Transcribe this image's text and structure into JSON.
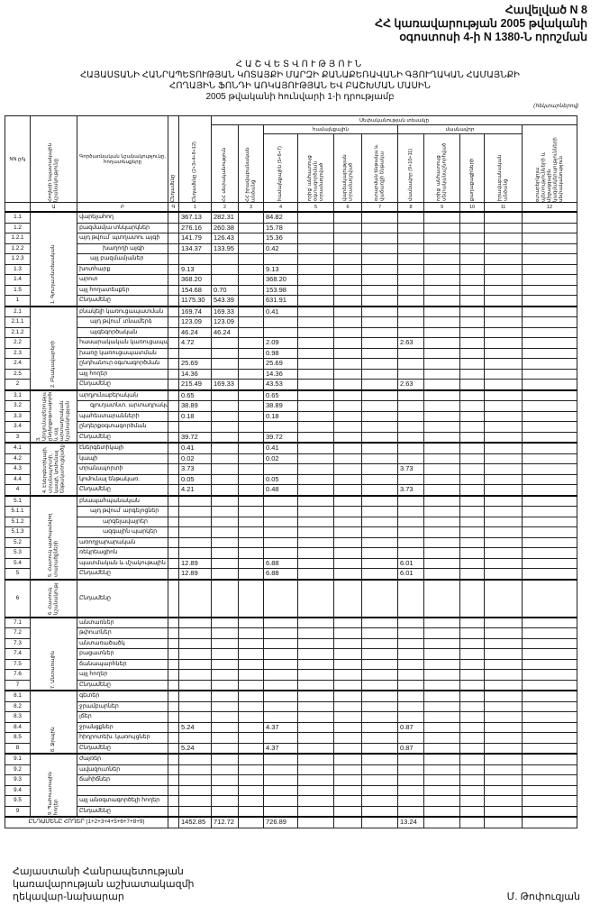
{
  "annex": {
    "line1": "Հավելված N 8",
    "line2": "ՀՀ կառավարության 2005 թվականի",
    "line3": "օգոստոսի 4-ի N 1380-Ն որոշման"
  },
  "title": {
    "t1": "ՀԱՇՎԵՏՎՈՒԹՅՈՒՆ",
    "t2": "ՀԱՅԱՍՏԱՆԻ ՀԱՆՐԱՊԵՏՈՒԹՅԱՆ ԿՈՏԱՅՔԻ ՄԱՐԶԻ ՔԱՆԱՔԵՌԱՎԱՆԻ ԳՅՈՒՂԱԿԱՆ ՀԱՄԱՅՆՔԻ",
    "t3": "ՀՈՂԱՅԻՆ ՖՈՆԴԻ ԱՌԿԱՅՈՒԹՅԱՆ ԵՎ ԲԱՇԽՄԱՆ ՄԱՍԻՆ",
    "t4": "2005 թվականի հունվարի 1-ի դրությամբ",
    "unit": "(հեկտարներով)"
  },
  "header": {
    "no": "NN ը/կ",
    "group": "Հողերի նպատակային նշանակությունը",
    "name": "Գործառնական նշանակությունը, հողատեսքերը",
    "measure": "Ընդամենը",
    "total": "Ընդամենը (2+3+4+8+12)",
    "ownership": "Սեփականության տեսակը",
    "communal": "համայնքային",
    "private": "մասնավոր",
    "c2": "ՀՀ սեփականություն",
    "c3": "ՀՀ իրավաբանական անձանց",
    "c4": "համայնքային (5+6+7)",
    "c5": "որից՝ անհատույց օգտագործման տրամադրված",
    "c6": "վարձակալության տրամադրված",
    "c7": "օտարման ենթակա և վաճառքի ենթակա",
    "c8": "մասնավոր (9+10+11)",
    "c9": "որից՝ անհատույց սեփականաշնորհված",
    "c10": "քաղաքացիների",
    "c11": "իրավաբանական անձանց",
    "c12": "օտարերկրյա պետությունների և միջազգային կազմակերպությունների սեփականություն",
    "nums": [
      "",
      "Ա",
      "Բ",
      "Գ",
      "1",
      "2",
      "3",
      "4",
      "5",
      "6",
      "7",
      "8",
      "9",
      "10",
      "11",
      "12"
    ]
  },
  "table": {
    "sections": [
      {
        "group": "1. Գյուղատնտեսական",
        "rows": [
          {
            "no": "1.1",
            "name": "վարելահող",
            "v": {
              "1": "367.13",
              "2": "282.31",
              "4": "84.82"
            }
          },
          {
            "no": "1.2",
            "name": "բազմամյա տնկարկներ",
            "v": {
              "1": "276.16",
              "2": "260.38",
              "4": "15.78"
            }
          },
          {
            "no": "1.2.1",
            "name": "այդ թվում՝ պտղատու այգի",
            "v": {
              "1": "141.79",
              "2": "126.43",
              "4": "15.36"
            }
          },
          {
            "no": "1.2.2",
            "name": "խաղողի այգի",
            "ind": 2,
            "v": {
              "1": "134.37",
              "2": "133.95",
              "4": "0.42"
            }
          },
          {
            "no": "1.2.3",
            "name": "այլ բազմամյաներ",
            "ind": 1,
            "v": {}
          },
          {
            "no": "1.3",
            "name": "խոտհարք",
            "v": {
              "1": "9.13",
              "4": "9.13"
            }
          },
          {
            "no": "1.4",
            "name": "արոտ",
            "v": {
              "1": "368.20",
              "4": "368.20"
            }
          },
          {
            "no": "1.5",
            "name": "այլ հողատեսքեր",
            "v": {
              "1": "154.68",
              "2": "0.70",
              "4": "153.98"
            }
          },
          {
            "no": "1",
            "name": "Ընդամենը",
            "v": {
              "1": "1175.30",
              "2": "543.39",
              "4": "631.91"
            }
          }
        ]
      },
      {
        "group": "2. Բնակավայրերի",
        "rows": [
          {
            "no": "2.1",
            "name": "բնակելի կառուցապատման",
            "v": {
              "1": "169.74",
              "2": "169.33",
              "4": "0.41"
            }
          },
          {
            "no": "2.1.1",
            "name": "այդ թվում՝ տնամերձ",
            "ind": 1,
            "v": {
              "1": "123.09",
              "2": "123.09"
            }
          },
          {
            "no": "2.1.2",
            "name": "այգեգործական",
            "ind": 1,
            "v": {
              "1": "46.24",
              "2": "46.24"
            }
          },
          {
            "no": "2.2",
            "name": "հասարակական կառուցապատման",
            "v": {
              "1": "4.72",
              "4": "2.09",
              "8": "2.63"
            }
          },
          {
            "no": "2.3",
            "name": "խառը կառուցապատման",
            "v": {
              "4": "0.98"
            }
          },
          {
            "no": "2.4",
            "name": "ընդհանուր օգտագործման",
            "v": {
              "1": "25.69",
              "4": "25.69"
            }
          },
          {
            "no": "2.5",
            "name": "այլ հողեր",
            "v": {
              "1": "14.36",
              "4": "14.36"
            }
          },
          {
            "no": "2",
            "name": "Ընդամենը",
            "v": {
              "1": "215.49",
              "2": "169.33",
              "4": "43.53",
              "8": "2.63"
            }
          }
        ]
      },
      {
        "group": "3. Արդյունաբերության, ընդերքօգտագործման և այլ արտադրական նշանակության",
        "rows": [
          {
            "no": "3.1",
            "name": "արդյունաբերական",
            "v": {
              "1": "0.65",
              "4": "0.65"
            }
          },
          {
            "no": "3.2",
            "name": "գյուղատնտ. արտադրական",
            "ind": 1,
            "v": {
              "1": "38.89",
              "4": "38.89"
            }
          },
          {
            "no": "3.3",
            "name": "պահեստարանների",
            "v": {
              "1": "0.18",
              "4": "0.18"
            }
          },
          {
            "no": "3.4",
            "name": "ընդերքօգտագործման",
            "v": {}
          },
          {
            "no": "3",
            "name": "Ընդամենը",
            "v": {
              "1": "39.72",
              "4": "39.72"
            }
          }
        ]
      },
      {
        "group": "4. Էներգետիկայի, տրանսպորտի, կապի, կոմունալ ենթակառուցվածքների",
        "rows": [
          {
            "no": "4.1",
            "name": "էներգետիկայի",
            "v": {
              "1": "0.41",
              "4": "0.41"
            }
          },
          {
            "no": "4.2",
            "name": "կապի",
            "v": {
              "1": "0.02",
              "4": "0.02"
            }
          },
          {
            "no": "4.3",
            "name": "տրանսպորտի",
            "v": {
              "1": "3.73",
              "8": "3.73"
            }
          },
          {
            "no": "4.4",
            "name": "կոմունալ ենթակառ.",
            "v": {
              "1": "0.05",
              "4": "0.05"
            }
          },
          {
            "no": "4",
            "name": "Ընդամենը",
            "v": {
              "1": "4.21",
              "4": "0.48",
              "8": "3.73"
            }
          }
        ]
      },
      {
        "group": "5. Հատուկ պահպանվող տարածքների",
        "rows": [
          {
            "no": "5.1",
            "name": "բնապահպանական",
            "v": {}
          },
          {
            "no": "5.1.1",
            "name": "այդ թվում՝ արգելոցներ",
            "ind": 1,
            "v": {}
          },
          {
            "no": "5.1.2",
            "name": "արգելավայրեր",
            "ind": 2,
            "v": {}
          },
          {
            "no": "5.1.3",
            "name": "ազգային պարկեր",
            "ind": 2,
            "v": {}
          },
          {
            "no": "5.2",
            "name": "առողջարարական",
            "v": {}
          },
          {
            "no": "5.3",
            "name": "ռեկրեացիոն",
            "v": {}
          },
          {
            "no": "5.4",
            "name": "պատմական և մշակութային",
            "v": {
              "1": "12.89",
              "4": "6.88",
              "8": "6.01"
            }
          },
          {
            "no": "5",
            "name": "Ընդամենը",
            "v": {
              "1": "12.89",
              "4": "6.88",
              "8": "6.01"
            }
          }
        ]
      },
      {
        "group": "6. Հատուկ նշանակության",
        "tall": true,
        "rows": [
          {
            "no": "6",
            "name": "Ընդամենը",
            "v": {}
          }
        ]
      },
      {
        "group": "7. Անտառային",
        "rows": [
          {
            "no": "7.1",
            "name": "անտառներ",
            "v": {}
          },
          {
            "no": "7.2",
            "name": "թփուտներ",
            "v": {}
          },
          {
            "no": "7.3",
            "name": "անտառածածկ",
            "v": {}
          },
          {
            "no": "7.4",
            "name": "բացատներ",
            "v": {}
          },
          {
            "no": "7.5",
            "name": "ճանապարհներ",
            "v": {}
          },
          {
            "no": "7.6",
            "name": "այլ հողեր",
            "v": {}
          },
          {
            "no": "7",
            "name": "Ընդամենը",
            "v": {}
          }
        ]
      },
      {
        "group": "8. Ջրային",
        "rows": [
          {
            "no": "8.1",
            "name": "գետեր",
            "v": {}
          },
          {
            "no": "8.2",
            "name": "ջրամբարներ",
            "v": {}
          },
          {
            "no": "8.3",
            "name": "լճեր",
            "v": {}
          },
          {
            "no": "8.4",
            "name": "ջրանցքներ",
            "v": {
              "1": "5.24",
              "4": "4.37",
              "8": "0.87"
            }
          },
          {
            "no": "8.5",
            "name": "հիդրոտեխ. կառույցներ",
            "v": {}
          },
          {
            "no": "8",
            "name": "Ընդամենը",
            "v": {
              "1": "5.24",
              "4": "4.37",
              "8": "0.87"
            }
          }
        ]
      },
      {
        "group": "9. Պահուստային հողեր",
        "rows": [
          {
            "no": "9.1",
            "name": "ժայռեր",
            "v": {}
          },
          {
            "no": "9.2",
            "name": "ավազուտներ",
            "v": {}
          },
          {
            "no": "9.3",
            "name": "ճահիճներ",
            "v": {}
          },
          {
            "no": "9.4",
            "name": "",
            "v": {}
          },
          {
            "no": "9.5",
            "name": "այլ անօգտագործելի հողեր",
            "v": {}
          },
          {
            "no": "9",
            "name": "Ընդամենը",
            "v": {}
          }
        ]
      }
    ],
    "total": {
      "label": "ԸՆԴԱՄԵՆԸ ՀՈՂԵՐ (1+2+3+4+5+6+7+8+9)",
      "v": {
        "1": "1452.85",
        "2": "712.72",
        "4": "726.89",
        "8": "13.24"
      }
    }
  },
  "footer": {
    "l1": "Հայաստանի Հանրապետության",
    "l2": "կառավարության աշխատակազմի",
    "l3": "ղեկավար-նախարար",
    "signer": "Մ. Թոփուզյան"
  }
}
